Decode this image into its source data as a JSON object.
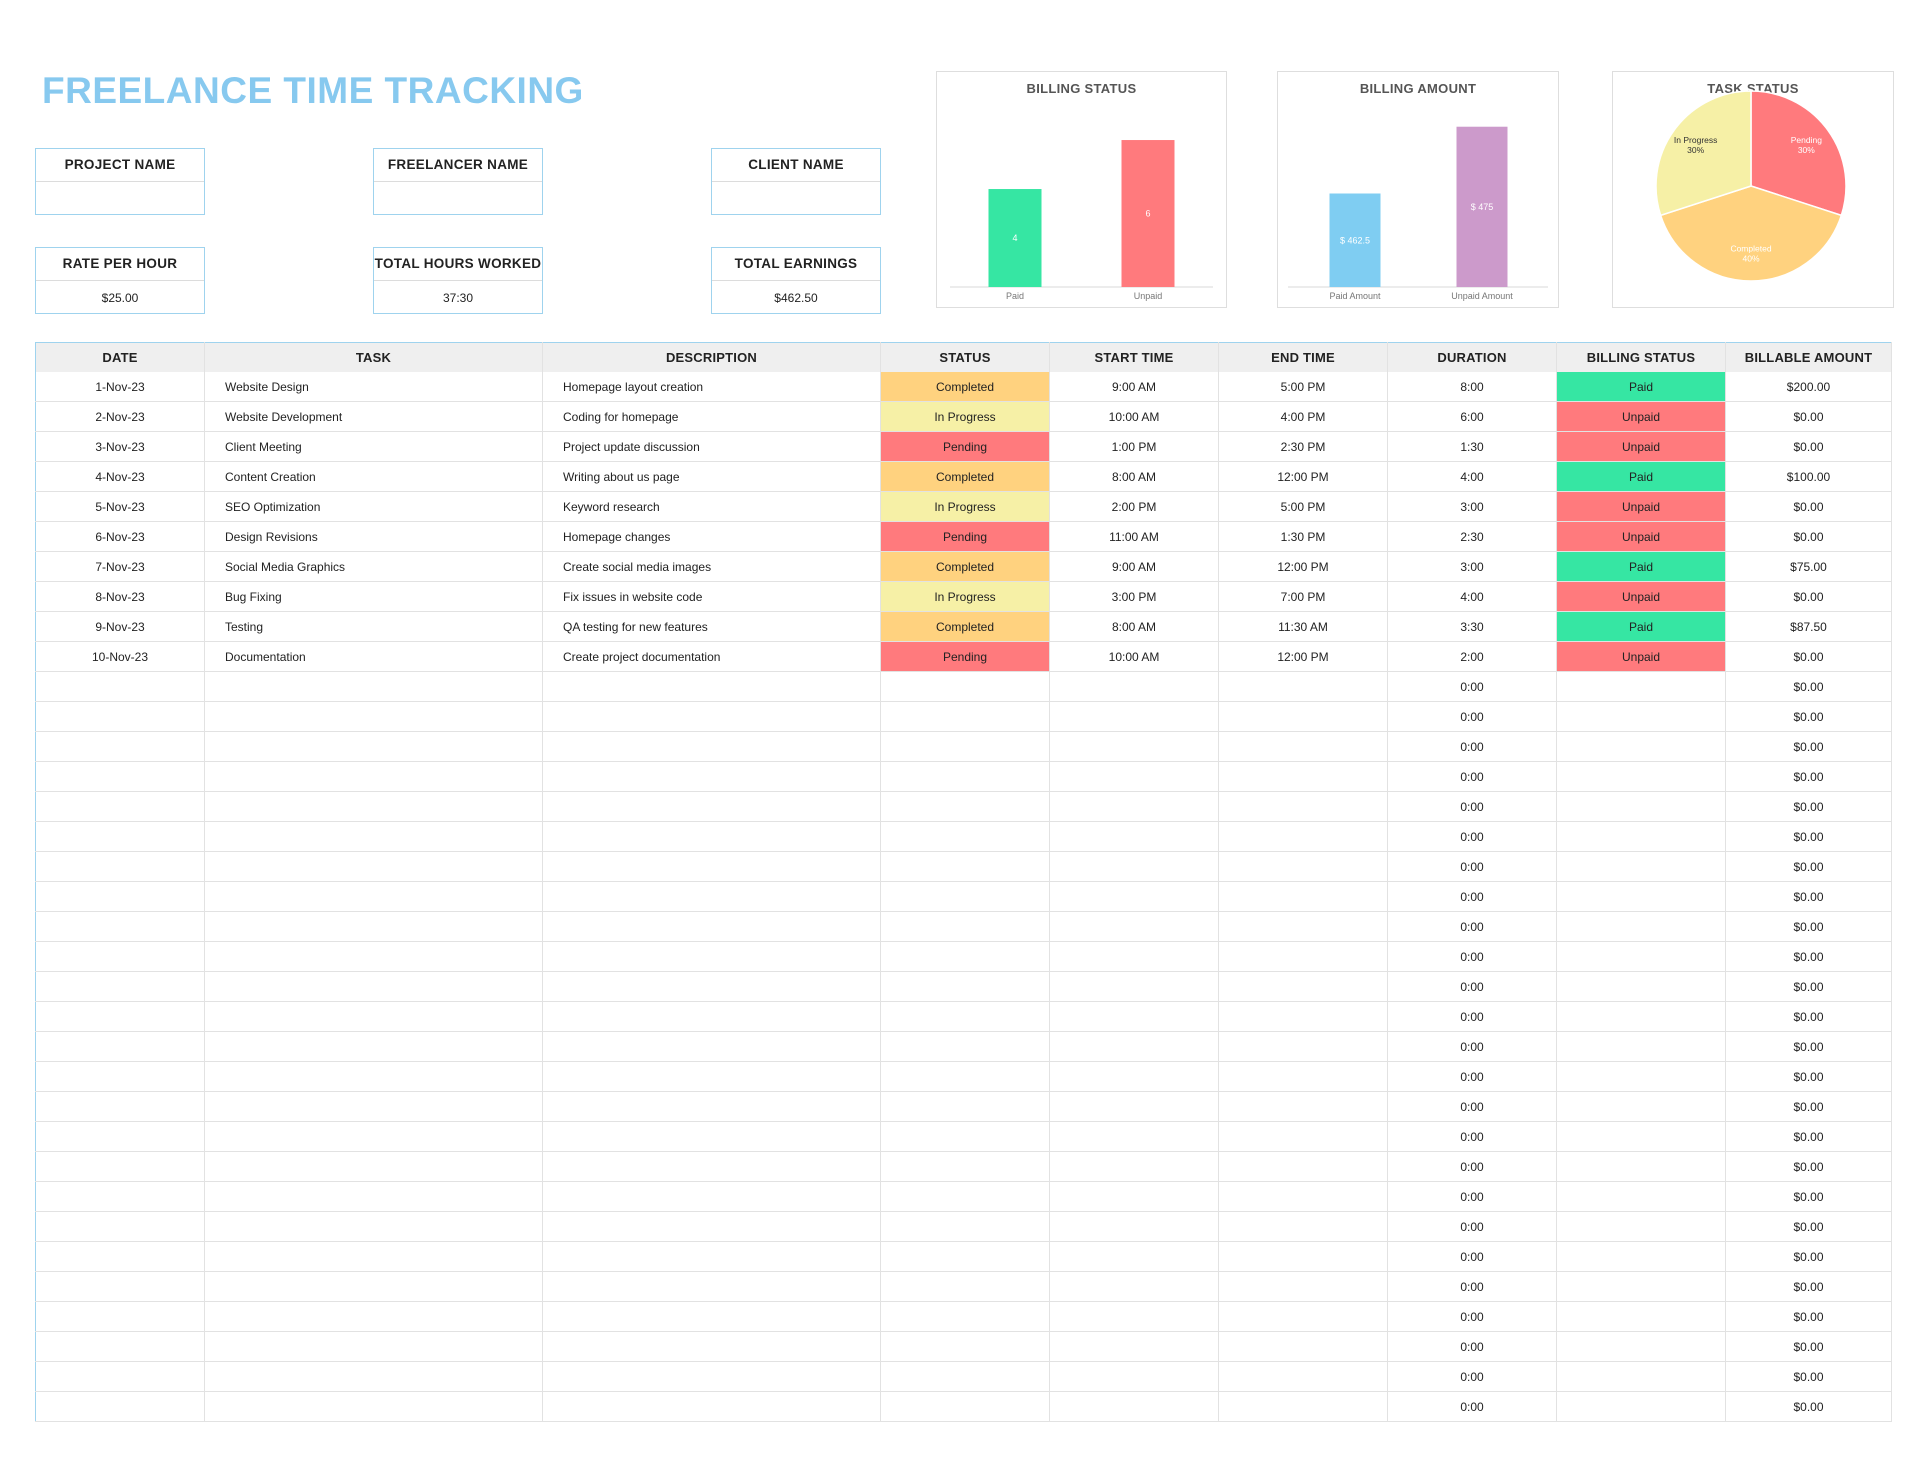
{
  "title": "FREELANCE TIME TRACKING",
  "info": {
    "project_name": {
      "label": "PROJECT NAME",
      "value": ""
    },
    "freelancer_name": {
      "label": "FREELANCER NAME",
      "value": ""
    },
    "client_name": {
      "label": "CLIENT NAME",
      "value": ""
    },
    "rate_per_hour": {
      "label": "RATE PER HOUR",
      "value": "$25.00"
    },
    "total_hours_worked": {
      "label": "TOTAL HOURS WORKED",
      "value": "37:30"
    },
    "total_earnings": {
      "label": "TOTAL EARNINGS",
      "value": "$462.50"
    }
  },
  "colors": {
    "title": "#87c9ef",
    "completed": "#ffd27f",
    "in_progress": "#f6f0a6",
    "pending": "#ff7a7d",
    "paid": "#36e6a3",
    "unpaid": "#ff7a7d",
    "paid_amount_bar": "#7fcdf2",
    "unpaid_amount_bar": "#cc9acb"
  },
  "chart_data": [
    {
      "type": "bar",
      "title": "BILLING STATUS",
      "categories": [
        "Paid",
        "Unpaid"
      ],
      "values": [
        4,
        6
      ],
      "data_labels": [
        "4",
        "6"
      ],
      "ylim": [
        0,
        6.9
      ],
      "grid": false
    },
    {
      "type": "bar",
      "title": "BILLING AMOUNT",
      "categories": [
        "Paid Amount",
        "Unpaid Amount"
      ],
      "values": [
        462.5,
        475
      ],
      "data_labels": [
        "$ 462.5",
        "$ 475"
      ],
      "ylim": [
        445,
        480
      ],
      "grid": false
    },
    {
      "type": "pie",
      "title": "TASK STATUS",
      "categories": [
        "Pending",
        "Completed",
        "In Progress"
      ],
      "values": [
        30,
        40,
        30
      ],
      "data_labels": [
        [
          "Pending",
          "30%"
        ],
        [
          "Completed",
          "40%"
        ],
        [
          "In Progress",
          "30%"
        ]
      ]
    }
  ],
  "table": {
    "headers": [
      "DATE",
      "TASK",
      "DESCRIPTION",
      "STATUS",
      "START TIME",
      "END TIME",
      "DURATION",
      "BILLING STATUS",
      "BILLABLE AMOUNT"
    ],
    "rows": [
      [
        "1-Nov-23",
        "Website Design",
        "Homepage layout creation",
        "Completed",
        "9:00 AM",
        "5:00 PM",
        "8:00",
        "Paid",
        "$200.00"
      ],
      [
        "2-Nov-23",
        "Website Development",
        "Coding for homepage",
        "In Progress",
        "10:00 AM",
        "4:00 PM",
        "6:00",
        "Unpaid",
        "$0.00"
      ],
      [
        "3-Nov-23",
        "Client Meeting",
        "Project update discussion",
        "Pending",
        "1:00 PM",
        "2:30 PM",
        "1:30",
        "Unpaid",
        "$0.00"
      ],
      [
        "4-Nov-23",
        "Content Creation",
        "Writing about us page",
        "Completed",
        "8:00 AM",
        "12:00 PM",
        "4:00",
        "Paid",
        "$100.00"
      ],
      [
        "5-Nov-23",
        "SEO Optimization",
        "Keyword research",
        "In Progress",
        "2:00 PM",
        "5:00 PM",
        "3:00",
        "Unpaid",
        "$0.00"
      ],
      [
        "6-Nov-23",
        "Design Revisions",
        "Homepage changes",
        "Pending",
        "11:00 AM",
        "1:30 PM",
        "2:30",
        "Unpaid",
        "$0.00"
      ],
      [
        "7-Nov-23",
        "Social Media Graphics",
        "Create social media images",
        "Completed",
        "9:00 AM",
        "12:00 PM",
        "3:00",
        "Paid",
        "$75.00"
      ],
      [
        "8-Nov-23",
        "Bug Fixing",
        "Fix issues in website code",
        "In Progress",
        "3:00 PM",
        "7:00 PM",
        "4:00",
        "Unpaid",
        "$0.00"
      ],
      [
        "9-Nov-23",
        "Testing",
        "QA testing for new features",
        "Completed",
        "8:00 AM",
        "11:30 AM",
        "3:30",
        "Paid",
        "$87.50"
      ],
      [
        "10-Nov-23",
        "Documentation",
        "Create project documentation",
        "Pending",
        "10:00 AM",
        "12:00 PM",
        "2:00",
        "Unpaid",
        "$0.00"
      ],
      [
        "",
        "",
        "",
        "",
        "",
        "",
        "0:00",
        "",
        "$0.00"
      ],
      [
        "",
        "",
        "",
        "",
        "",
        "",
        "0:00",
        "",
        "$0.00"
      ],
      [
        "",
        "",
        "",
        "",
        "",
        "",
        "0:00",
        "",
        "$0.00"
      ],
      [
        "",
        "",
        "",
        "",
        "",
        "",
        "0:00",
        "",
        "$0.00"
      ],
      [
        "",
        "",
        "",
        "",
        "",
        "",
        "0:00",
        "",
        "$0.00"
      ],
      [
        "",
        "",
        "",
        "",
        "",
        "",
        "0:00",
        "",
        "$0.00"
      ],
      [
        "",
        "",
        "",
        "",
        "",
        "",
        "0:00",
        "",
        "$0.00"
      ],
      [
        "",
        "",
        "",
        "",
        "",
        "",
        "0:00",
        "",
        "$0.00"
      ],
      [
        "",
        "",
        "",
        "",
        "",
        "",
        "0:00",
        "",
        "$0.00"
      ],
      [
        "",
        "",
        "",
        "",
        "",
        "",
        "0:00",
        "",
        "$0.00"
      ],
      [
        "",
        "",
        "",
        "",
        "",
        "",
        "0:00",
        "",
        "$0.00"
      ],
      [
        "",
        "",
        "",
        "",
        "",
        "",
        "0:00",
        "",
        "$0.00"
      ],
      [
        "",
        "",
        "",
        "",
        "",
        "",
        "0:00",
        "",
        "$0.00"
      ],
      [
        "",
        "",
        "",
        "",
        "",
        "",
        "0:00",
        "",
        "$0.00"
      ],
      [
        "",
        "",
        "",
        "",
        "",
        "",
        "0:00",
        "",
        "$0.00"
      ],
      [
        "",
        "",
        "",
        "",
        "",
        "",
        "0:00",
        "",
        "$0.00"
      ],
      [
        "",
        "",
        "",
        "",
        "",
        "",
        "0:00",
        "",
        "$0.00"
      ],
      [
        "",
        "",
        "",
        "",
        "",
        "",
        "0:00",
        "",
        "$0.00"
      ],
      [
        "",
        "",
        "",
        "",
        "",
        "",
        "0:00",
        "",
        "$0.00"
      ],
      [
        "",
        "",
        "",
        "",
        "",
        "",
        "0:00",
        "",
        "$0.00"
      ],
      [
        "",
        "",
        "",
        "",
        "",
        "",
        "0:00",
        "",
        "$0.00"
      ],
      [
        "",
        "",
        "",
        "",
        "",
        "",
        "0:00",
        "",
        "$0.00"
      ],
      [
        "",
        "",
        "",
        "",
        "",
        "",
        "0:00",
        "",
        "$0.00"
      ],
      [
        "",
        "",
        "",
        "",
        "",
        "",
        "0:00",
        "",
        "$0.00"
      ],
      [
        "",
        "",
        "",
        "",
        "",
        "",
        "0:00",
        "",
        "$0.00"
      ]
    ]
  }
}
